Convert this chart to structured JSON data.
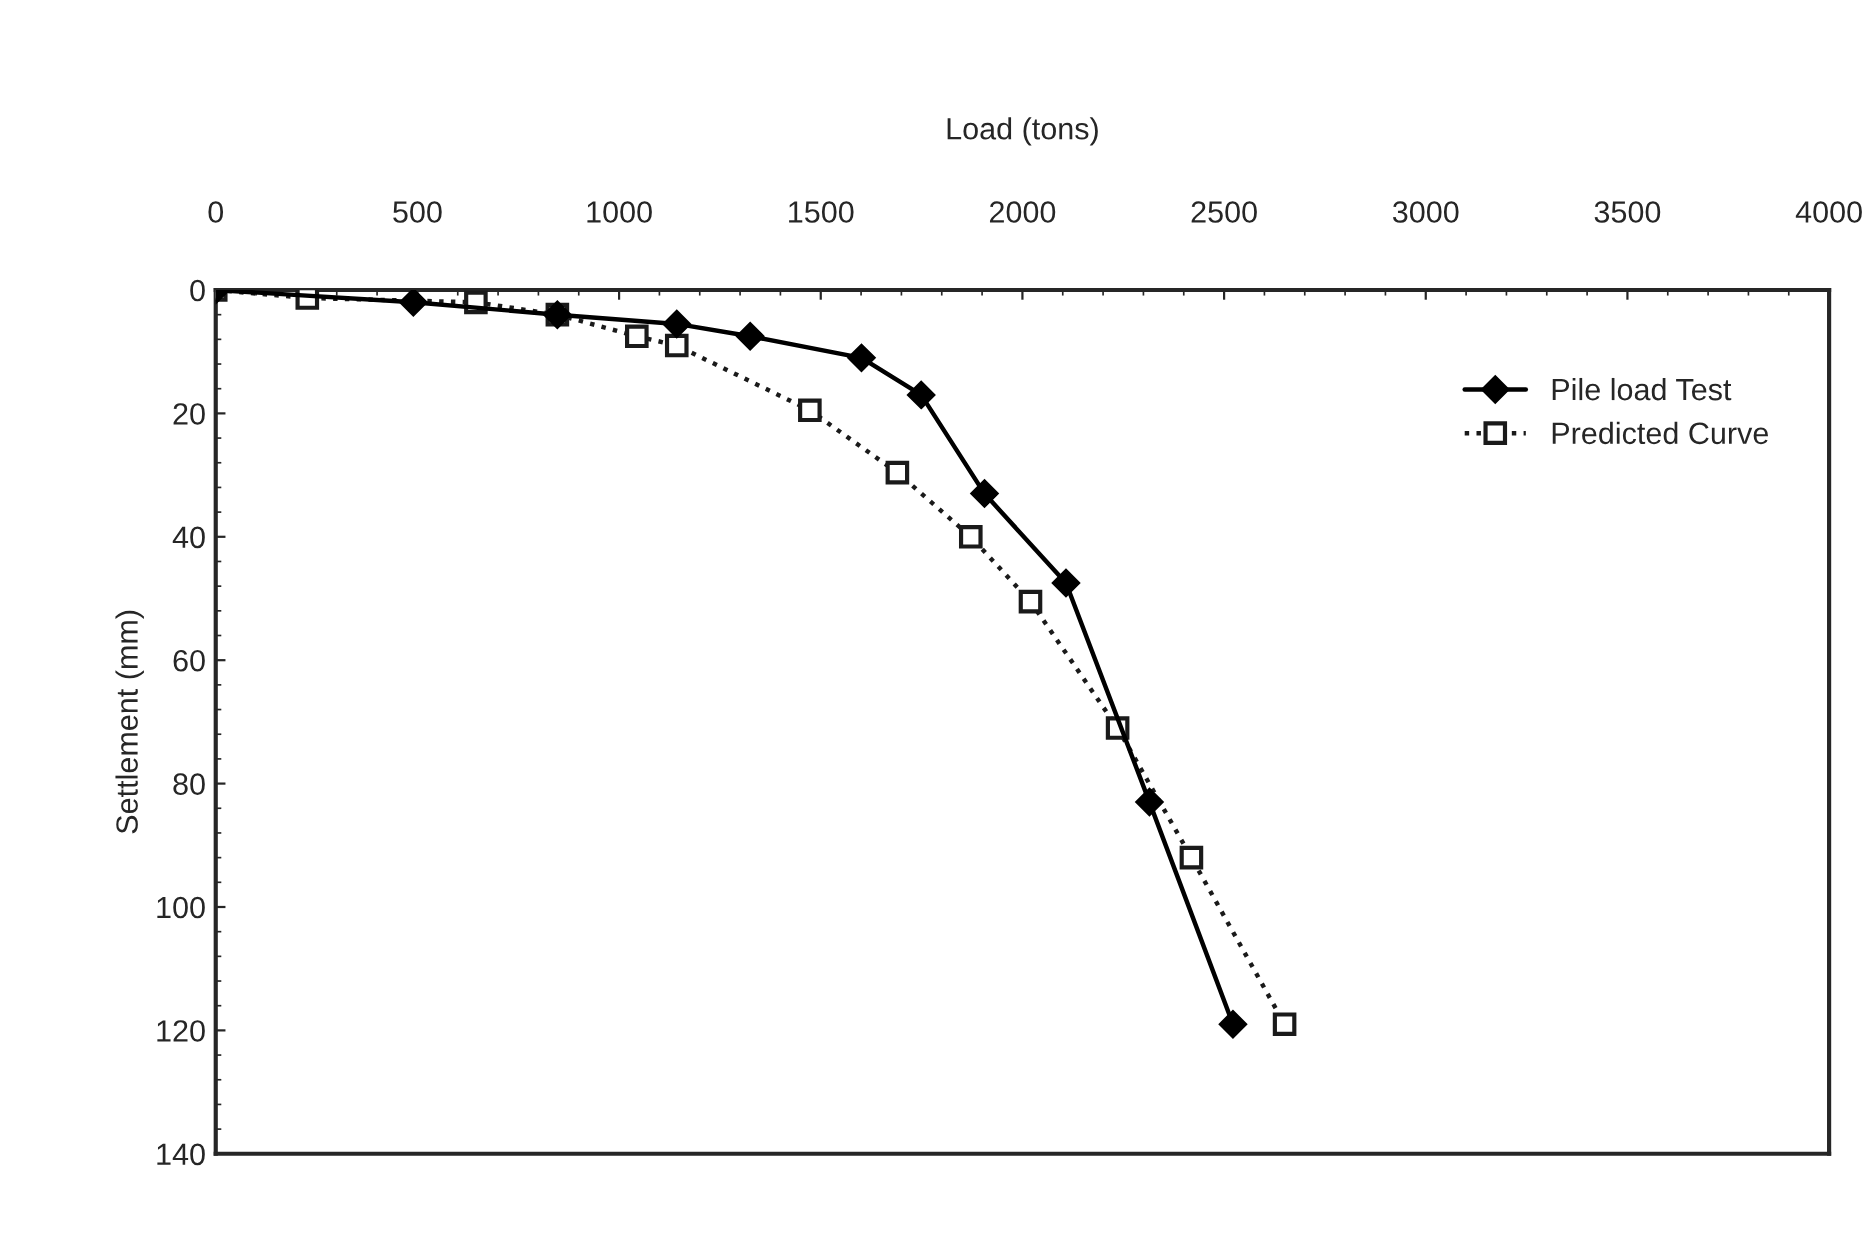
{
  "chart_data": {
    "type": "line",
    "xlabel": "Load (tons)",
    "ylabel": "Settlement (mm)",
    "xlim": [
      0,
      4000
    ],
    "xticks": [
      0,
      500,
      1000,
      1500,
      2000,
      2500,
      3000,
      3500,
      4000
    ],
    "ylim": [
      140,
      0
    ],
    "yticks": [
      0,
      20,
      40,
      60,
      80,
      100,
      120,
      140
    ],
    "grid": false,
    "legend": "top right",
    "series": [
      {
        "name": "Pile load Test",
        "color": "#000000",
        "marker": "diamond",
        "line_style": "solid",
        "x": [
          0,
          490,
          847,
          1143,
          1325,
          1601,
          1749,
          1906,
          2108,
          2315,
          2522
        ],
        "values": [
          0,
          2,
          4,
          5.5,
          7.5,
          11,
          17,
          33,
          47.5,
          83,
          119
        ]
      },
      {
        "name": "Predicted Curve",
        "color": "#1a1a1a",
        "marker": "square",
        "line_style": "dotted",
        "x": [
          0,
          227,
          645,
          847,
          1044,
          1143,
          1473,
          1690,
          1872,
          2020,
          2236,
          2419,
          2650
        ],
        "values": [
          0,
          1.3,
          2,
          4,
          7.5,
          9,
          19.5,
          29.6,
          40,
          50.5,
          71,
          92,
          119
        ]
      }
    ]
  }
}
